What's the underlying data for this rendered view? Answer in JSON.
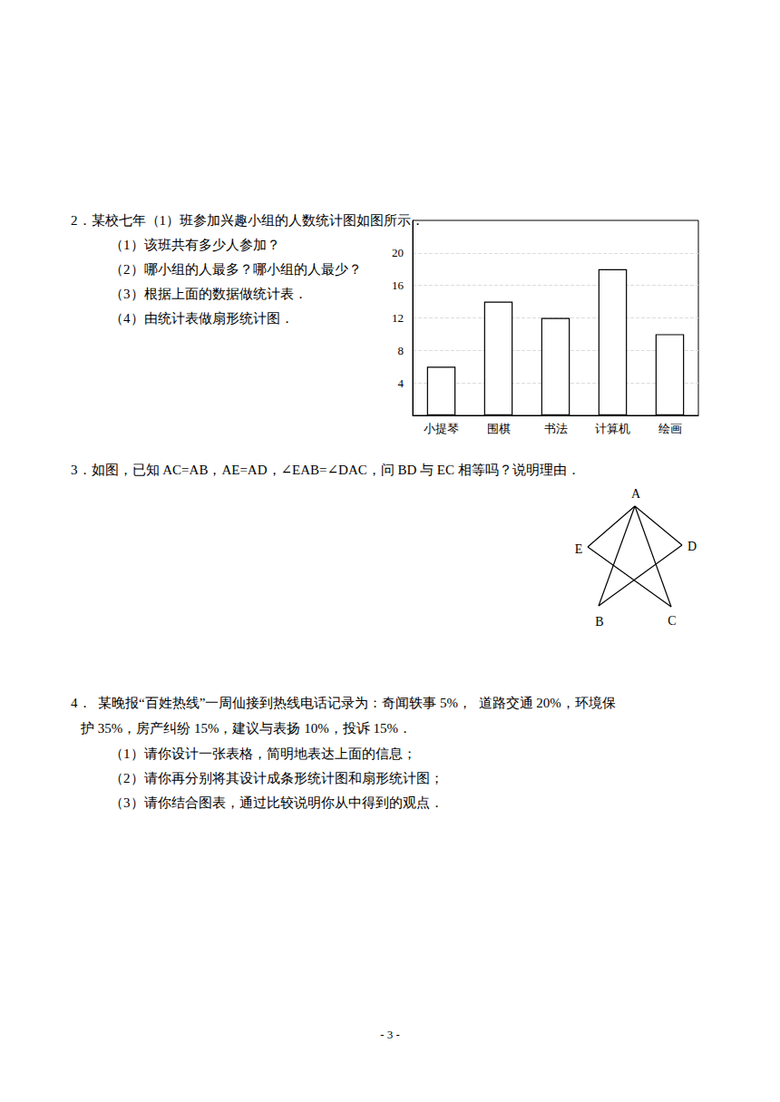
{
  "questions": [
    {
      "lines": [
        "2．某校七年（1）班参加兴趣小组的人数统计图如图所示．"
      ],
      "parts": [
        "（1）该班共有多少人参加？",
        "（2）哪小组的人最多？哪小组的人最少？",
        "（3）根据上面的数据做统计表．",
        "（4）由统计表做扇形统计图．"
      ]
    },
    {
      "lines": [
        "3．如图，已知 AC=AB，AE=AD，∠EAB=∠DAC，问 BD 与 EC 相等吗？说明理由．"
      ],
      "parts": []
    },
    {
      "lines": [
        "4．  某晚报“百姓热线”一周仙接到热线电话记录为：奇闻轶事 5%，  道路交通 20%，环境保",
        "护 35%，房产纠纷 15%，建议与表扬 10%，投诉 15%．"
      ],
      "parts": [
        "（1）请你设计一张表格，简明地表达上面的信息；",
        "（2）请你再分别将其设计成条形统计图和扇形统计图；",
        "（3）请你结合图表，通过比较说明你从中得到的观点．"
      ]
    }
  ],
  "chart_data": {
    "type": "bar",
    "categories": [
      "小提琴",
      "围棋",
      "书法",
      "计算机",
      "绘画"
    ],
    "values": [
      6,
      14,
      12,
      18,
      10
    ],
    "color": "#ffffff",
    "ylim": [
      0,
      24
    ],
    "yticks": [
      4,
      8,
      12,
      16,
      20
    ],
    "grid": true
  },
  "diagram": {
    "points": [
      "A",
      "E",
      "D",
      "B",
      "C"
    ],
    "segments": [
      [
        "A",
        "E"
      ],
      [
        "A",
        "D"
      ],
      [
        "A",
        "B"
      ],
      [
        "A",
        "C"
      ],
      [
        "E",
        "C"
      ],
      [
        "D",
        "B"
      ]
    ]
  },
  "page_number": "- 3 -"
}
